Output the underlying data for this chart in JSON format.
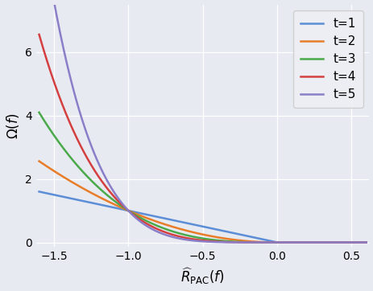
{
  "xlim": [
    -1.62,
    0.62
  ],
  "ylim": [
    -0.15,
    7.5
  ],
  "xticks": [
    -1.5,
    -1.0,
    -0.5,
    0.0,
    0.5
  ],
  "yticks": [
    0,
    2,
    4,
    6
  ],
  "xlabel": "$\\widehat{R}_{\\mathrm{PAC}}(f)$",
  "ylabel": "$\\Omega(f)$",
  "background_color": "#e8eaf2",
  "plot_bg_color": "#e8eaf2",
  "legend_labels": [
    "t=1",
    "t=2",
    "t=3",
    "t=4",
    "t=5"
  ],
  "line_colors": [
    "#5b8ed6",
    "#e87d29",
    "#4aaa4a",
    "#d44040",
    "#8b7ec8"
  ],
  "t_values": [
    1,
    2,
    3,
    4,
    5
  ],
  "x_start": -1.6,
  "x_end": 0.6,
  "n_points": 1000,
  "figwidth": 4.64,
  "figheight": 3.62,
  "dpi": 100,
  "linewidth": 1.8,
  "grid_color": "#ffffff",
  "grid_linewidth": 0.9,
  "tick_labelsize": 10,
  "xlabel_fontsize": 12,
  "ylabel_fontsize": 12,
  "legend_fontsize": 11,
  "legend_bg": "#eeeef5",
  "legend_edgecolor": "#cccccc",
  "legend_labelspacing": 0.45,
  "legend_borderpad": 0.6,
  "legend_handlelength": 1.8
}
